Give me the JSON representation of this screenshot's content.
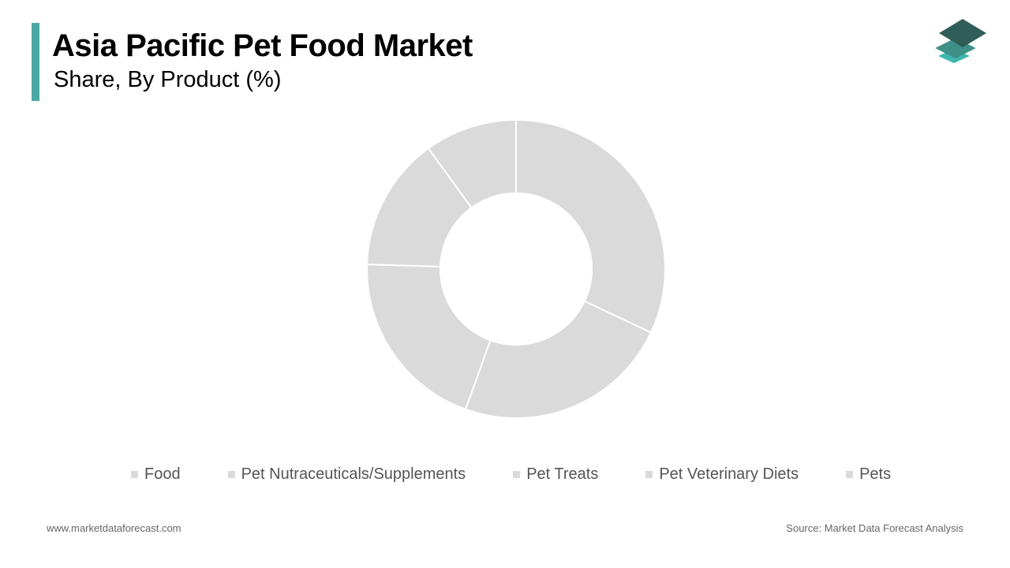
{
  "header": {
    "title": "Asia Pacific Pet Food Market",
    "subtitle": "Share, By Product (%)",
    "accent_color": "#4aa8a4"
  },
  "logo": {
    "icon": "layered-diamond-logo-icon"
  },
  "chart_data": {
    "type": "donut",
    "series": [
      {
        "name": "Food",
        "value": 32
      },
      {
        "name": "Pet Nutraceuticals/Supplements",
        "value": 23.5
      },
      {
        "name": "Pet Treats",
        "value": 20
      },
      {
        "name": "Pet Veterinary Diets",
        "value": 14.5
      },
      {
        "name": "Pets",
        "value": 10
      }
    ],
    "slice_color": "#dadada",
    "separator_color": "#ffffff",
    "start": "12 o'clock",
    "direction": "clockwise",
    "legend_position": "bottom"
  },
  "footer": {
    "website": "www.marketdataforecast.com",
    "source": "Source: Market Data Forecast Analysis"
  }
}
